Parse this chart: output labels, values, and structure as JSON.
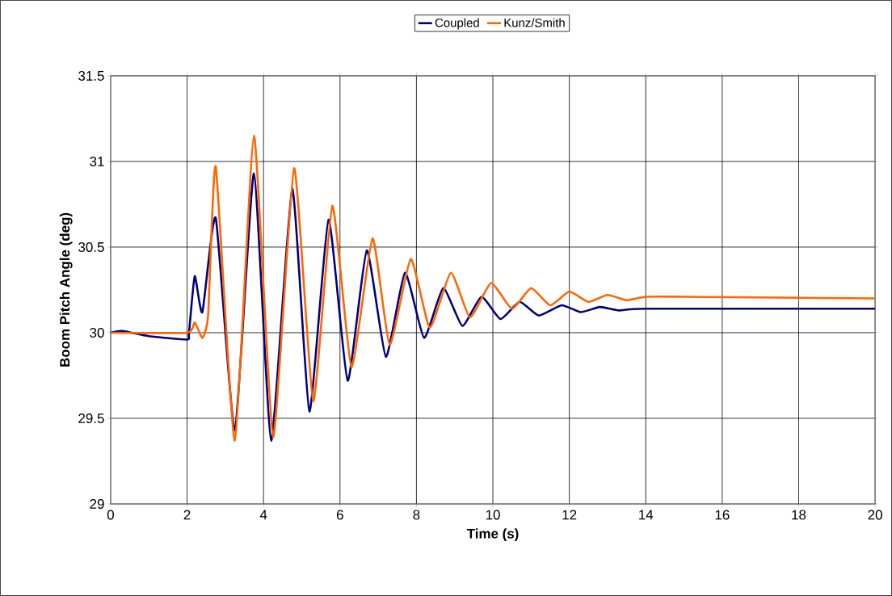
{
  "chart_data": {
    "type": "line",
    "xlabel": "Time (s)",
    "ylabel": "Boom Pitch Angle (deg)",
    "xlim": [
      0,
      20
    ],
    "ylim": [
      29,
      31.5
    ],
    "xticks": [
      0,
      2,
      4,
      6,
      8,
      10,
      12,
      14,
      16,
      18,
      20
    ],
    "yticks": [
      29,
      29.5,
      30,
      30.5,
      31,
      31.5
    ],
    "grid": true,
    "legend": "top",
    "marker": "none",
    "line_style": "solid",
    "series": [
      {
        "name": "Coupled",
        "color": "#000080",
        "x": [
          0,
          0.3,
          1,
          2,
          2.05,
          2.2,
          2.4,
          2.75,
          3.25,
          3.75,
          4.2,
          4.75,
          5.2,
          5.7,
          6.2,
          6.7,
          7.2,
          7.7,
          8.2,
          8.7,
          9.2,
          9.7,
          10.2,
          10.7,
          11.2,
          11.8,
          12.3,
          12.8,
          13.3,
          14,
          20
        ],
        "values": [
          30,
          30.01,
          29.98,
          29.96,
          30.0,
          30.33,
          30.12,
          30.67,
          29.43,
          30.93,
          29.37,
          30.84,
          29.54,
          30.66,
          29.72,
          30.48,
          29.86,
          30.35,
          29.97,
          30.26,
          30.04,
          30.21,
          30.08,
          30.18,
          30.1,
          30.16,
          30.12,
          30.15,
          30.13,
          30.14,
          30.14
        ]
      },
      {
        "name": "Kunz/Smith",
        "color": "#ff6600",
        "x": [
          0,
          2,
          2.2,
          2.4,
          2.55,
          2.75,
          3.25,
          3.75,
          4.25,
          4.8,
          5.3,
          5.8,
          6.3,
          6.85,
          7.3,
          7.85,
          8.35,
          8.9,
          9.4,
          9.95,
          10.5,
          11,
          11.5,
          12,
          12.5,
          13,
          13.5,
          14,
          15,
          20
        ],
        "values": [
          30,
          30,
          30.06,
          29.97,
          30.1,
          30.97,
          29.37,
          31.15,
          29.39,
          30.96,
          29.6,
          30.74,
          29.8,
          30.55,
          29.93,
          30.43,
          30.03,
          30.35,
          30.09,
          30.29,
          30.14,
          30.26,
          30.16,
          30.24,
          30.18,
          30.22,
          30.19,
          30.21,
          30.21,
          30.2
        ]
      }
    ]
  }
}
